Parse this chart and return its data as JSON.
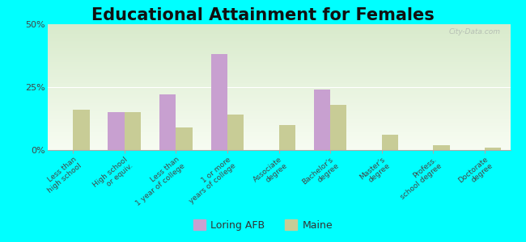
{
  "title": "Educational Attainment for Females",
  "categories": [
    "Less than\nhigh school",
    "High school\nor equiv.",
    "Less than\n1 year of college",
    "1 or more\nyears of college",
    "Associate\ndegree",
    "Bachelor's\ndegree",
    "Master's\ndegree",
    "Profess.\nschool degree",
    "Doctorate\ndegree"
  ],
  "loring_afb": [
    0,
    15,
    22,
    38,
    0,
    24,
    0,
    0,
    0
  ],
  "maine": [
    16,
    15,
    9,
    14,
    10,
    18,
    6,
    2,
    1
  ],
  "loring_color": "#c8a0d0",
  "maine_color": "#c8cc96",
  "bg_color": "#00ffff",
  "ylim": [
    0,
    50
  ],
  "yticks": [
    0,
    25,
    50
  ],
  "ytick_labels": [
    "0%",
    "25%",
    "50%"
  ],
  "title_fontsize": 15,
  "tick_fontsize": 6.5,
  "legend_loring": "Loring AFB",
  "legend_maine": "Maine",
  "watermark": "City-Data.com",
  "bar_width": 0.32
}
